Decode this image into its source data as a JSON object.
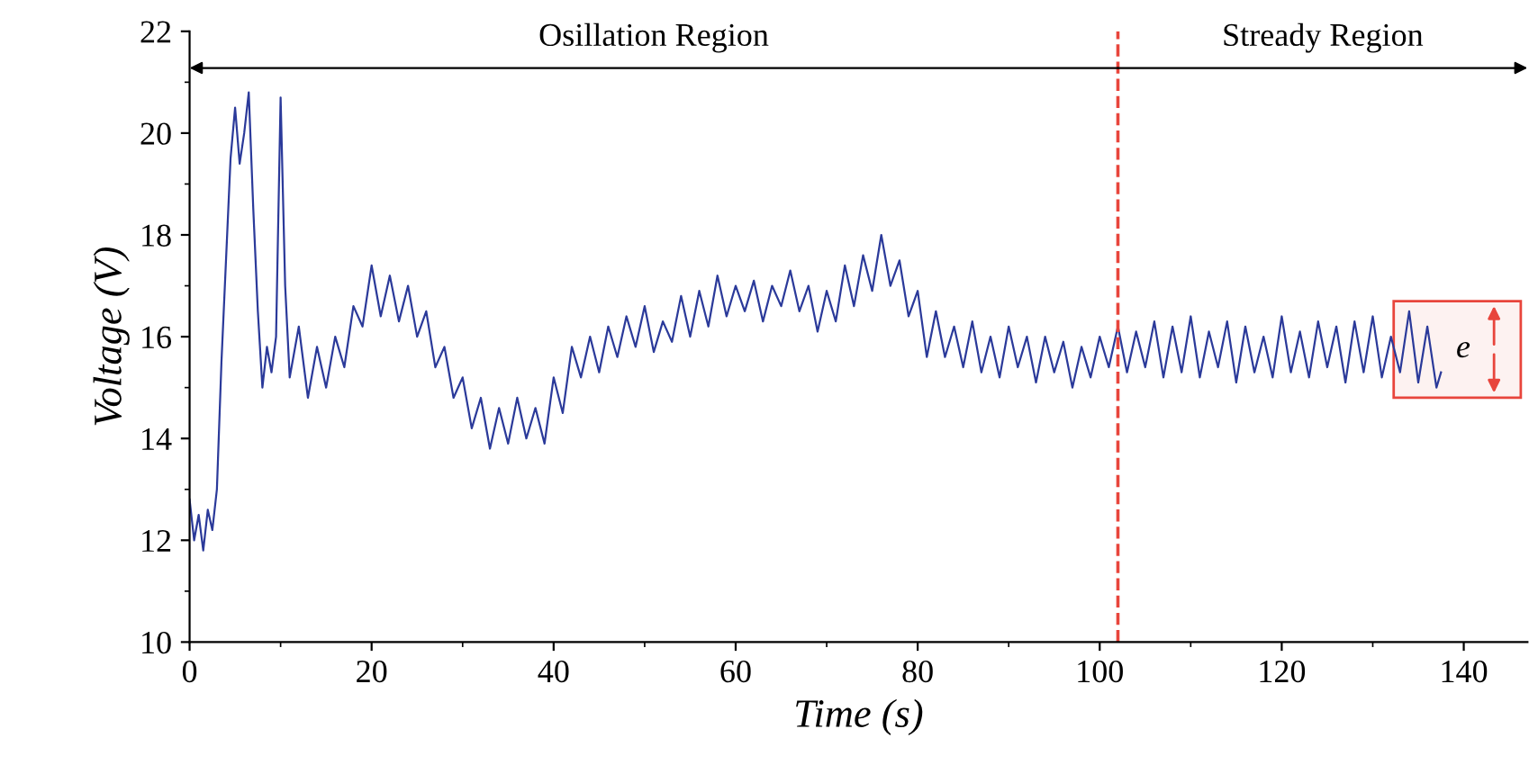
{
  "chart_data": {
    "type": "line",
    "xlabel": "Time (s)",
    "ylabel": "Voltage (V)",
    "x": [
      0,
      0.5,
      1,
      1.5,
      2,
      2.5,
      3,
      3.5,
      4,
      4.5,
      5,
      5.5,
      6,
      6.5,
      7,
      7.5,
      8,
      8.5,
      9,
      9.5,
      10,
      10.5,
      11,
      12,
      13,
      14,
      15,
      16,
      17,
      18,
      19,
      20,
      21,
      22,
      23,
      24,
      25,
      26,
      27,
      28,
      29,
      30,
      31,
      32,
      33,
      34,
      35,
      36,
      37,
      38,
      39,
      40,
      41,
      42,
      43,
      44,
      45,
      46,
      47,
      48,
      49,
      50,
      51,
      52,
      53,
      54,
      55,
      56,
      57,
      58,
      59,
      60,
      61,
      62,
      63,
      64,
      65,
      66,
      67,
      68,
      69,
      70,
      71,
      72,
      73,
      74,
      75,
      76,
      77,
      78,
      79,
      80,
      81,
      82,
      83,
      84,
      85,
      86,
      87,
      88,
      89,
      90,
      91,
      92,
      93,
      94,
      95,
      96,
      97,
      98,
      99,
      100,
      101,
      102,
      103,
      104,
      105,
      106,
      107,
      108,
      109,
      110,
      111,
      112,
      113,
      114,
      115,
      116,
      117,
      118,
      119,
      120,
      121,
      122,
      123,
      124,
      125,
      126,
      127,
      128,
      129,
      130,
      131,
      132,
      133,
      134,
      135,
      136,
      137,
      137.5
    ],
    "series": [
      {
        "color": "#2b3a9a",
        "values": [
          12.8,
          12.0,
          12.5,
          11.8,
          12.6,
          12.2,
          13.0,
          15.5,
          17.5,
          19.5,
          20.5,
          19.4,
          20.0,
          20.8,
          18.5,
          16.5,
          15.0,
          15.8,
          15.3,
          16.0,
          20.7,
          17.0,
          15.2,
          16.2,
          14.8,
          15.8,
          15.0,
          16.0,
          15.4,
          16.6,
          16.2,
          17.4,
          16.4,
          17.2,
          16.3,
          17.0,
          16.0,
          16.5,
          15.4,
          15.8,
          14.8,
          15.2,
          14.2,
          14.8,
          13.8,
          14.6,
          13.9,
          14.8,
          14.0,
          14.6,
          13.9,
          15.2,
          14.5,
          15.8,
          15.2,
          16.0,
          15.3,
          16.2,
          15.6,
          16.4,
          15.8,
          16.6,
          15.7,
          16.3,
          15.9,
          16.8,
          16.0,
          16.9,
          16.2,
          17.2,
          16.4,
          17.0,
          16.5,
          17.1,
          16.3,
          17.0,
          16.6,
          17.3,
          16.5,
          17.0,
          16.1,
          16.9,
          16.3,
          17.4,
          16.6,
          17.6,
          16.9,
          18.0,
          17.0,
          17.5,
          16.4,
          16.9,
          15.6,
          16.5,
          15.6,
          16.2,
          15.4,
          16.3,
          15.3,
          16.0,
          15.2,
          16.2,
          15.4,
          16.0,
          15.1,
          16.0,
          15.3,
          15.9,
          15.0,
          15.8,
          15.2,
          16.0,
          15.4,
          16.2,
          15.3,
          16.1,
          15.4,
          16.3,
          15.2,
          16.2,
          15.3,
          16.4,
          15.2,
          16.1,
          15.4,
          16.3,
          15.1,
          16.2,
          15.3,
          16.0,
          15.2,
          16.4,
          15.3,
          16.1,
          15.2,
          16.3,
          15.4,
          16.2,
          15.1,
          16.3,
          15.3,
          16.4,
          15.2,
          16.0,
          15.3,
          16.5,
          15.1,
          16.2,
          15.0,
          15.3
        ]
      }
    ],
    "xlim": [
      0,
      147
    ],
    "ylim": [
      10,
      22
    ],
    "xticks": [
      0,
      20,
      40,
      60,
      80,
      100,
      120,
      140
    ],
    "yticks": [
      10,
      12,
      14,
      16,
      18,
      20,
      22
    ],
    "ref_lines": [
      {
        "axis": "x",
        "value": 102,
        "color": "#e8453c",
        "line_style": "dashed"
      }
    ],
    "bands": [
      {
        "axis": "y",
        "from": 14.8,
        "to": 16.7,
        "label": "e",
        "color": "#e8453c"
      }
    ],
    "annotations": [
      "Osillation Region",
      "Stready Region"
    ],
    "grid": false,
    "legend": false
  }
}
